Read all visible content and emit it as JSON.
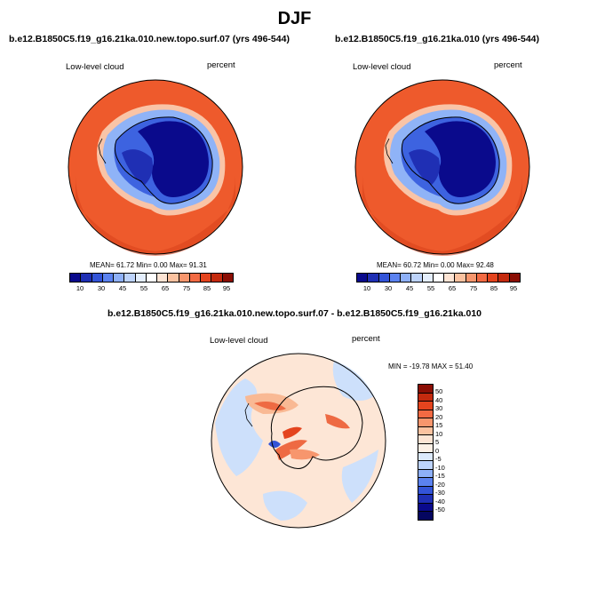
{
  "title": "DJF",
  "panels": [
    {
      "run": "b.e12.B1850C5.f19_g16.21ka.010.new.topo.surf.07 (yrs 496-544)",
      "field": "Low-level cloud",
      "units": "percent",
      "stats": "MEAN=  61.72  Min=   0.00  Max=  91.31"
    },
    {
      "run": "b.e12.B1850C5.f19_g16.21ka.010 (yrs 496-544)",
      "field": "Low-level cloud",
      "units": "percent",
      "stats": "MEAN=  60.72  Min=   0.00  Max=  92.48"
    }
  ],
  "diff": {
    "run": "b.e12.B1850C5.f19_g16.21ka.010.new.topo.surf.07 - b.e12.B1850C5.f19_g16.21ka.010",
    "field": "Low-level cloud",
    "units": "percent",
    "stats": "MIN = -19.78 MAX =  51.40"
  },
  "colorbar": {
    "ticks": [
      "10",
      "30",
      "45",
      "55",
      "65",
      "75",
      "85",
      "95"
    ],
    "colors": [
      "#0a0a8c",
      "#1f2fb4",
      "#3354d8",
      "#5b82f0",
      "#8eb0f8",
      "#bdd3fb",
      "#e4eefd",
      "#ffffff",
      "#fde4d4",
      "#fbc2a0",
      "#f7966d",
      "#f26a43",
      "#e4441e",
      "#c42a0e",
      "#8b0e04"
    ]
  },
  "diff_colorbar": {
    "ticks": [
      "50",
      "40",
      "30",
      "20",
      "15",
      "10",
      "5",
      "0",
      "-5",
      "-10",
      "-15",
      "-20",
      "-30",
      "-40",
      "-50"
    ],
    "colors": [
      "#8b0e04",
      "#c42a0e",
      "#e4441e",
      "#f26a43",
      "#f7966d",
      "#fbc2a0",
      "#fde4d4",
      "#fdf0e6",
      "#dce9fb",
      "#bdd3fb",
      "#8eb0f8",
      "#5b82f0",
      "#3354d8",
      "#1f2fb4",
      "#0a0a8c",
      "#050660"
    ]
  },
  "map_colors": {
    "ocean": "#ee5a2c",
    "ocean_dark": "#d9421b",
    "ring": "#f9c4a7",
    "ice_edge": "#8fb3f7",
    "ice_mid": "#3d63e0",
    "ice": "#0a0a8c",
    "diff_bg": "#fde6d6",
    "diff_blue": "#cde0fb",
    "diff_red": "#ee6a43"
  }
}
